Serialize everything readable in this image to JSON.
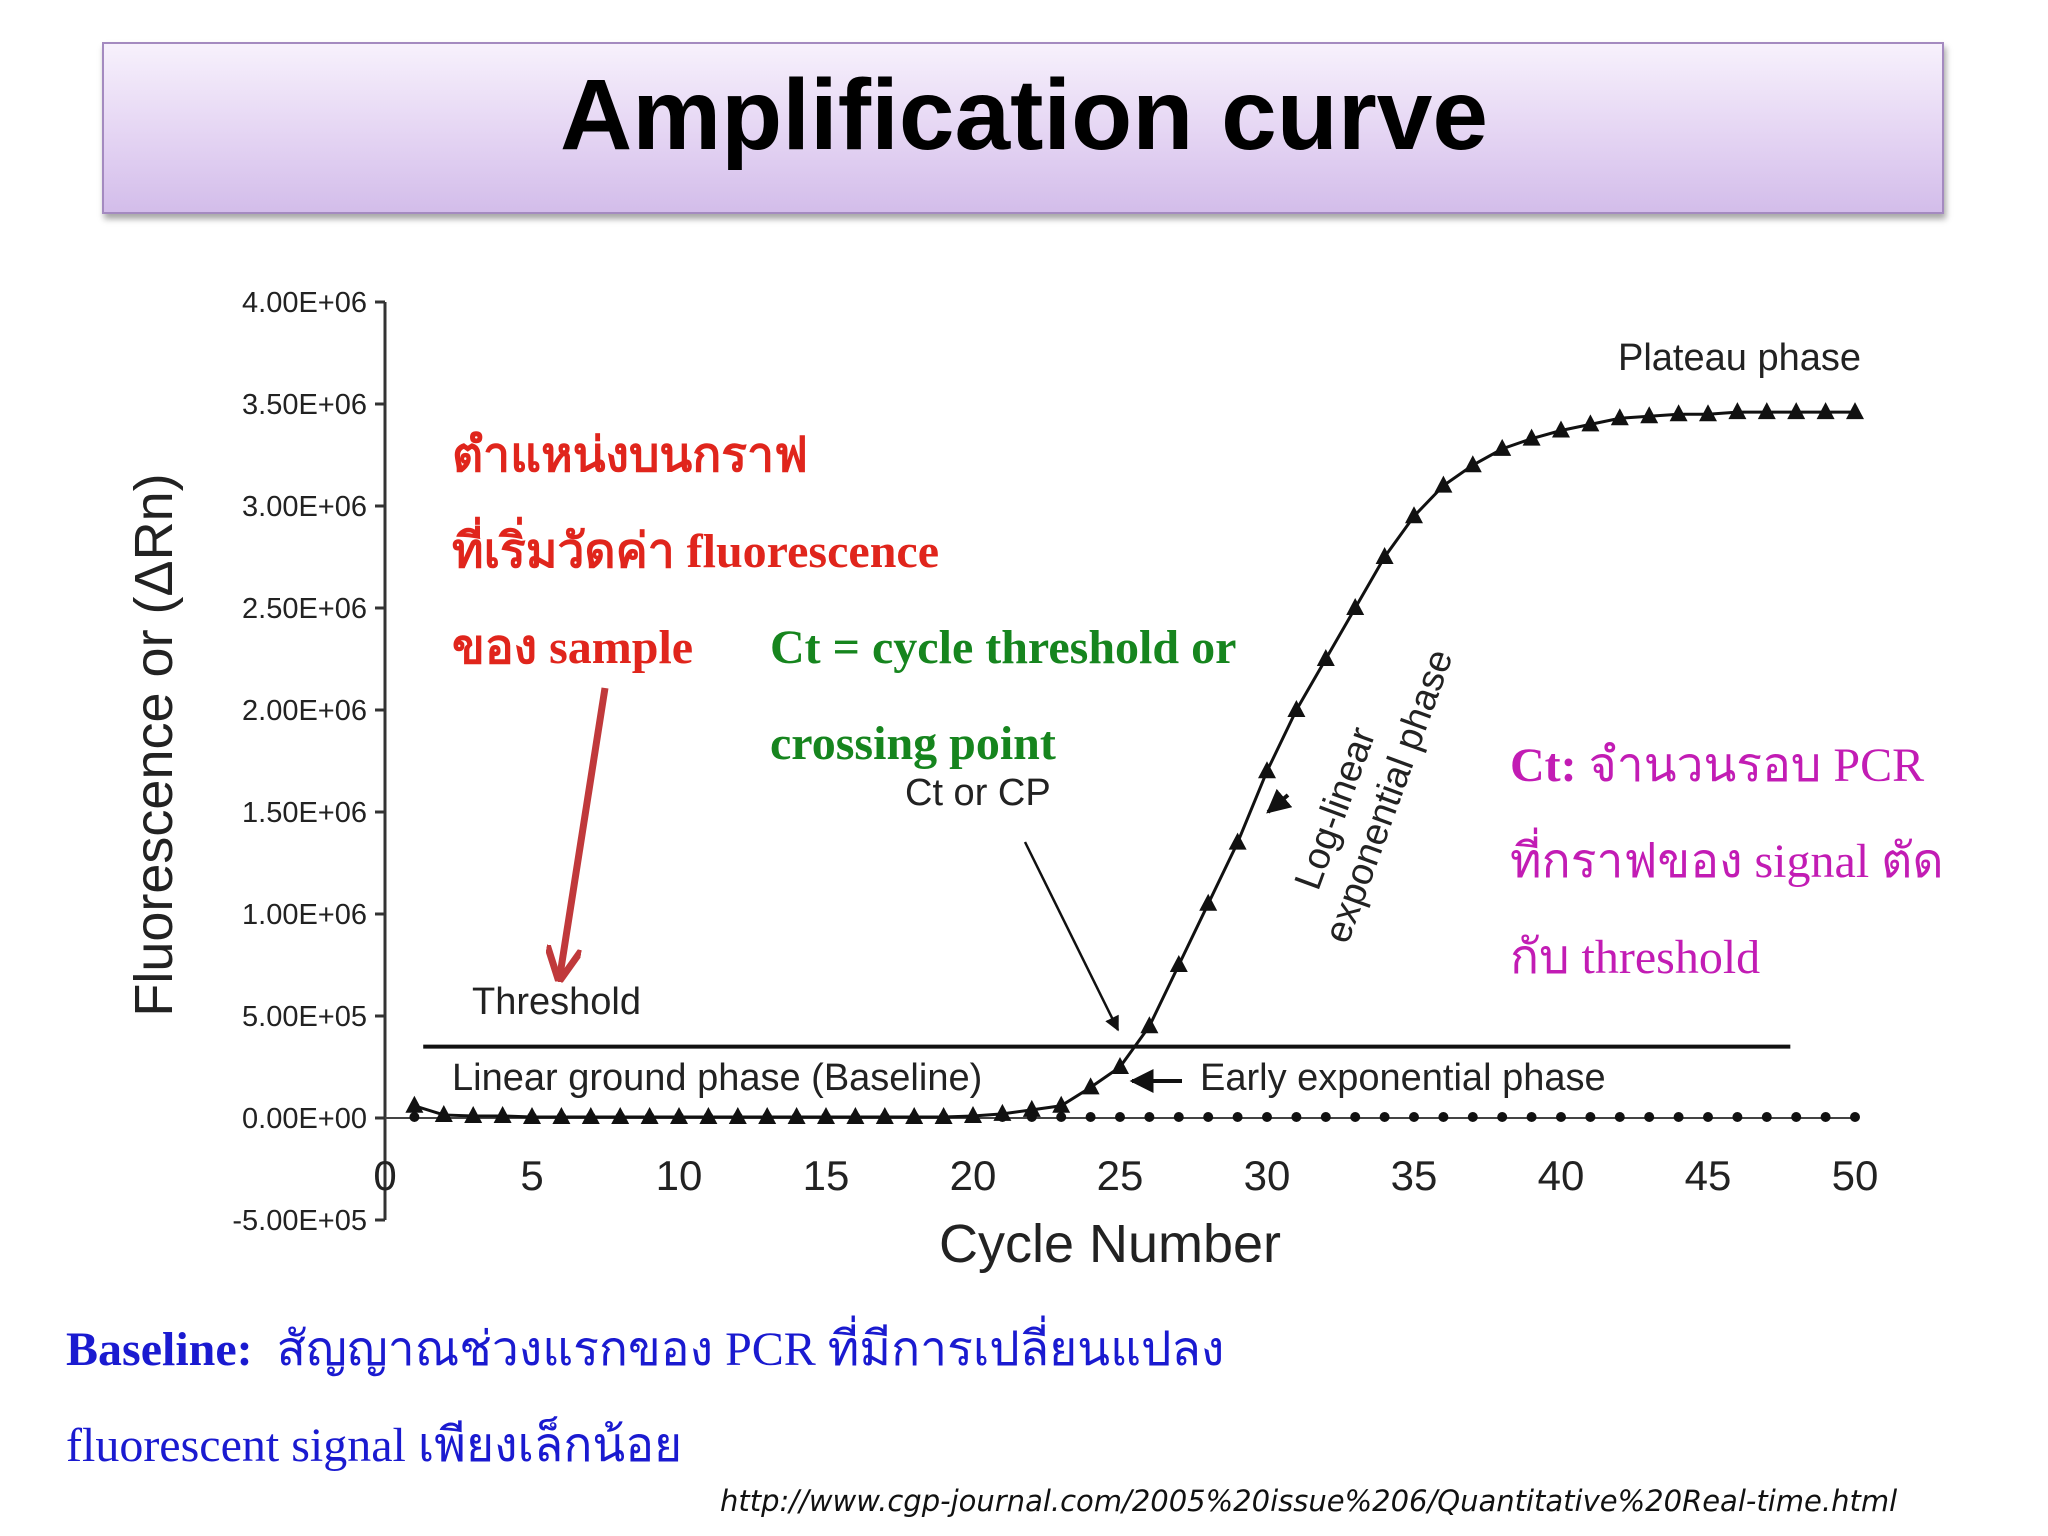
{
  "slide": {
    "title": "Amplification curve",
    "source_url": "http://www.cgp-journal.com/2005%20issue%206/Quantitative%20Real-time.html"
  },
  "annotations": {
    "red": [
      "ตำแหน่งบนกราฟ",
      "ที่เริ่มวัดค่า fluorescence",
      "ของ sample"
    ],
    "green": [
      "Ct = cycle threshold or",
      "crossing point"
    ],
    "magenta": {
      "label": "Ct:",
      "lines": [
        "จำนวนรอบ PCR",
        "ที่กราฟของ signal ตัด",
        "กับ threshold"
      ]
    },
    "baseline": {
      "label": "Baseline:",
      "line1": "สัญญาณช่วงแรกของ PCR ที่มีการเปลี่ยนแปลง",
      "line2": "fluorescent signal เพียงเล็กน้อย"
    }
  },
  "colors": {
    "red_text": "#e0251c",
    "green_text": "#16851e",
    "magenta_text": "#c21cb4",
    "blue_text": "#1a1ad0",
    "arrow_red": "#c0393b",
    "title_bg": "#e4d4f3"
  },
  "chart_data": {
    "type": "scatter",
    "xlabel": "Cycle Number",
    "ylabel": "Fluorescence or (ΔRn)",
    "xlim": [
      0,
      50
    ],
    "ylim": [
      -500000,
      4000000
    ],
    "xticks": [
      0,
      5,
      10,
      15,
      20,
      25,
      30,
      35,
      40,
      45,
      50
    ],
    "xtick_labels": [
      "0",
      "5",
      "10",
      "15",
      "20",
      "25",
      "30",
      "35",
      "40",
      "45",
      "50"
    ],
    "yticks": [
      -500000,
      0,
      500000,
      1000000,
      1500000,
      2000000,
      2500000,
      3000000,
      3500000,
      4000000
    ],
    "ytick_labels": [
      "-5.00E+05",
      "0.00E+00",
      "5.00E+05",
      "1.00E+06",
      "1.50E+06",
      "2.00E+06",
      "2.50E+06",
      "3.00E+06",
      "3.50E+06",
      "4.00E+06"
    ],
    "threshold": 350000,
    "threshold_label": "Threshold",
    "grid": false,
    "phase_labels": {
      "plateau": "Plateau phase",
      "log_linear": [
        "Log-linear",
        "exponential phase"
      ],
      "early": "Early exponential phase",
      "baseline": "Linear ground phase (Baseline)",
      "ct": "Ct or CP"
    },
    "series": [
      {
        "marker": "triangle",
        "x": [
          1,
          2,
          3,
          4,
          5,
          6,
          7,
          8,
          9,
          10,
          11,
          12,
          13,
          14,
          15,
          16,
          17,
          18,
          19,
          20,
          21,
          22,
          23,
          24,
          25,
          26,
          27,
          28,
          29,
          30,
          31,
          32,
          33,
          34,
          35,
          36,
          37,
          38,
          39,
          40,
          41,
          42,
          43,
          44,
          45,
          46,
          47,
          48,
          49,
          50
        ],
        "y": [
          60000,
          15000,
          10000,
          10000,
          5000,
          5000,
          5000,
          5000,
          5000,
          5000,
          5000,
          5000,
          5000,
          5000,
          5000,
          5000,
          5000,
          5000,
          5000,
          10000,
          20000,
          40000,
          60000,
          150000,
          250000,
          450000,
          750000,
          1050000,
          1350000,
          1700000,
          2000000,
          2250000,
          2500000,
          2750000,
          2950000,
          3100000,
          3200000,
          3280000,
          3330000,
          3370000,
          3400000,
          3430000,
          3440000,
          3450000,
          3450000,
          3460000,
          3460000,
          3460000,
          3460000,
          3460000
        ]
      },
      {
        "marker": "dot",
        "x": [
          1,
          2,
          3,
          4,
          5,
          6,
          7,
          8,
          9,
          10,
          11,
          12,
          13,
          14,
          15,
          16,
          17,
          18,
          19,
          20,
          21,
          22,
          23,
          24,
          25,
          26,
          27,
          28,
          29,
          30,
          31,
          32,
          33,
          34,
          35,
          36,
          37,
          38,
          39,
          40,
          41,
          42,
          43,
          44,
          45,
          46,
          47,
          48,
          49,
          50
        ],
        "y": [
          5000,
          5000,
          5000,
          5000,
          5000,
          5000,
          5000,
          5000,
          5000,
          5000,
          5000,
          5000,
          5000,
          5000,
          5000,
          5000,
          5000,
          5000,
          5000,
          5000,
          5000,
          5000,
          5000,
          5000,
          5000,
          5000,
          5000,
          5000,
          5000,
          5000,
          5000,
          5000,
          5000,
          5000,
          5000,
          5000,
          5000,
          5000,
          5000,
          5000,
          5000,
          5000,
          5000,
          5000,
          5000,
          5000,
          5000,
          5000,
          5000,
          5000
        ]
      }
    ]
  }
}
